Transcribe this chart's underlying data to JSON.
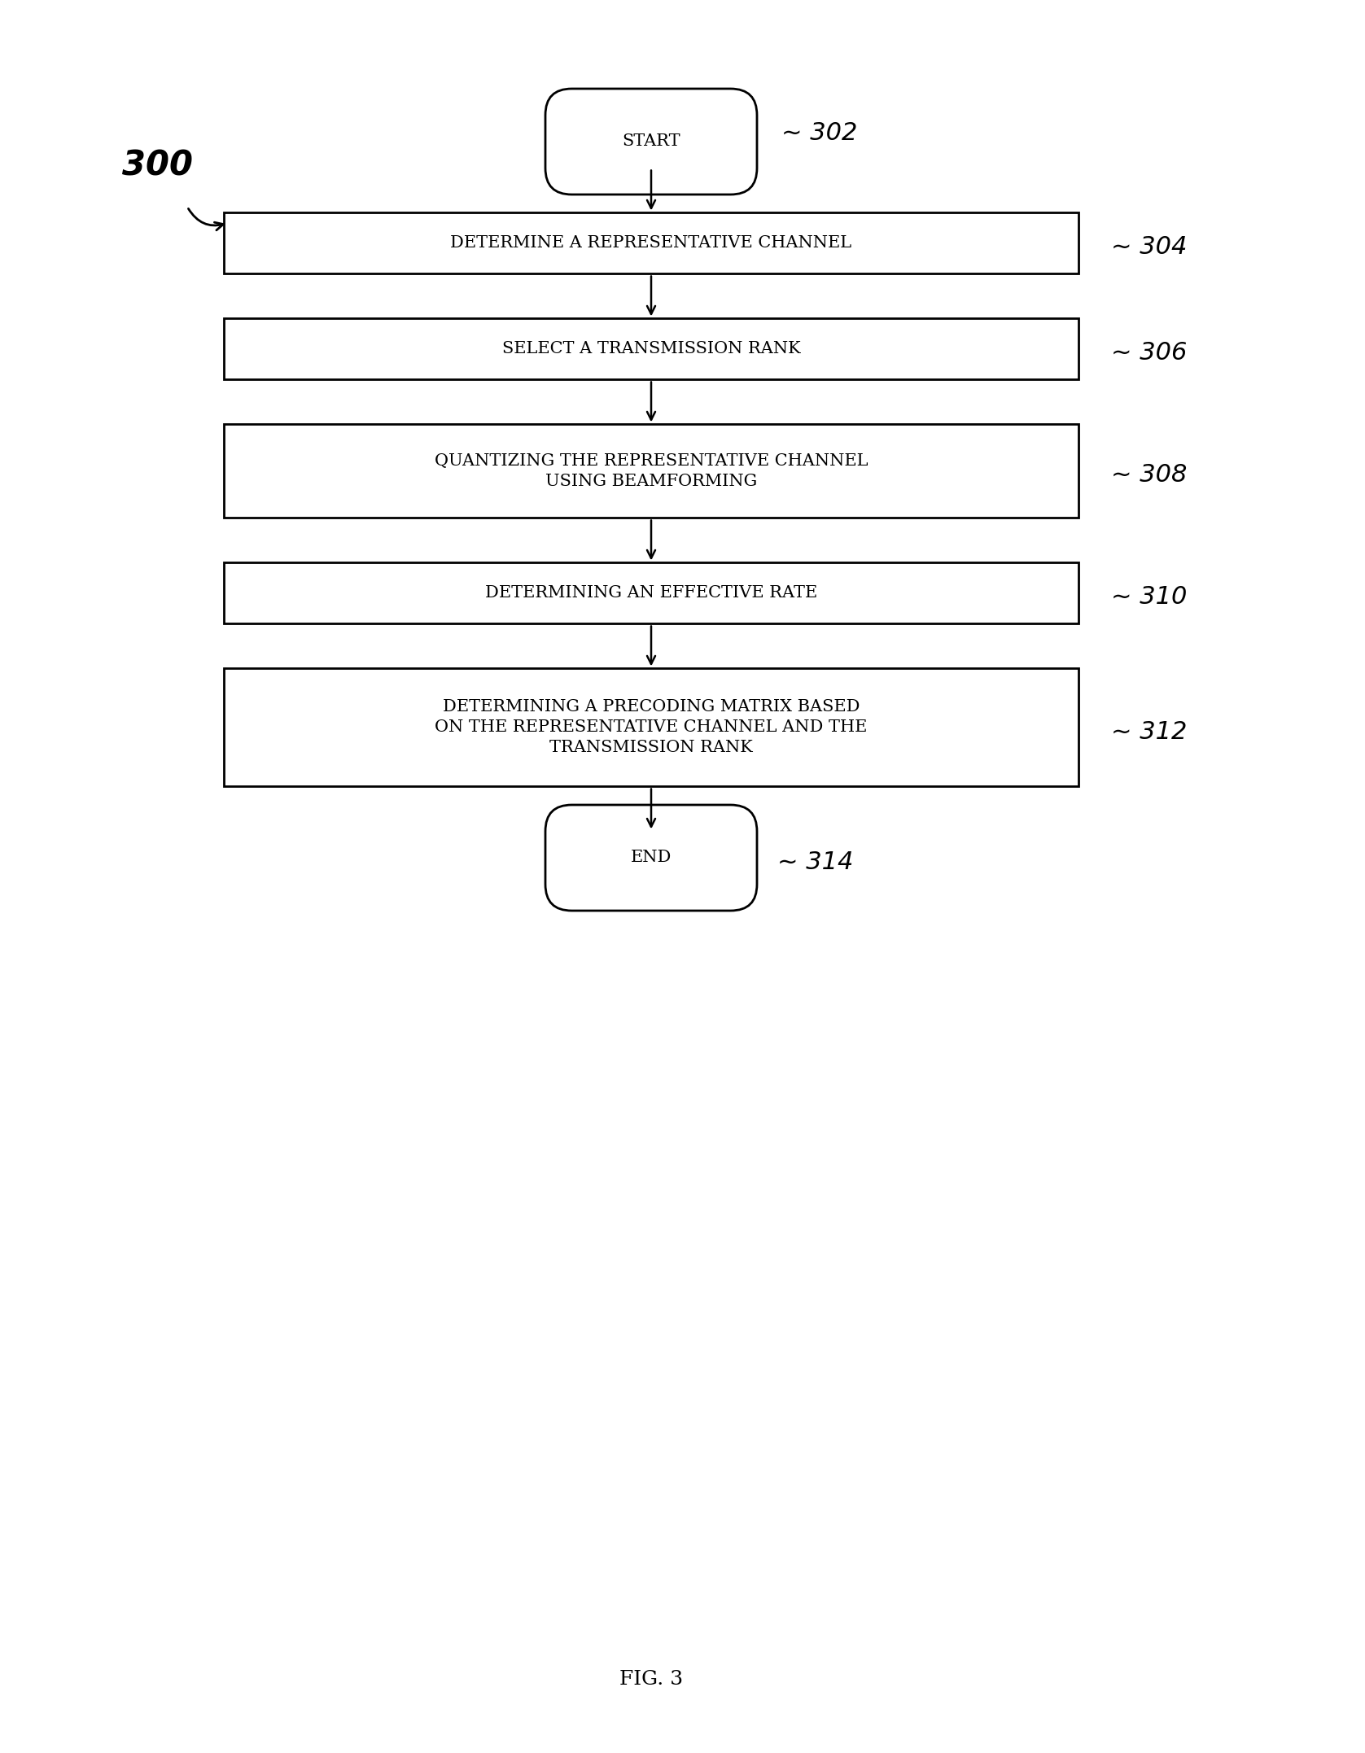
{
  "bg_color": "#ffffff",
  "fig_caption": "FIG. 3",
  "label_300": "300",
  "label_302": "~ 302",
  "label_304": "~ 304",
  "label_306": "~ 306",
  "label_308": "~ 308",
  "label_310": "~ 310",
  "label_312": "~ 312",
  "label_314": "~ 314",
  "start_text": "START",
  "end_text": "END",
  "boxes": [
    {
      "text": "DETERMINE A REPRESENTATIVE CHANNEL",
      "lines": 1
    },
    {
      "text": "SELECT A TRANSMISSION RANK",
      "lines": 1
    },
    {
      "text": "QUANTIZING THE REPRESENTATIVE CHANNEL\nUSING BEAMFORMING",
      "lines": 2
    },
    {
      "text": "DETERMINING AN EFFECTIVE RATE",
      "lines": 1
    },
    {
      "text": "DETERMINING A PRECODING MATRIX BASED\nON THE REPRESENTATIVE CHANNEL AND THE\nTRANSMISSION RANK",
      "lines": 3
    }
  ],
  "font_size_box": 15,
  "font_size_label": 14,
  "font_size_terminal": 15,
  "font_size_caption": 18,
  "font_size_300": 30,
  "font_size_handwritten": 22
}
